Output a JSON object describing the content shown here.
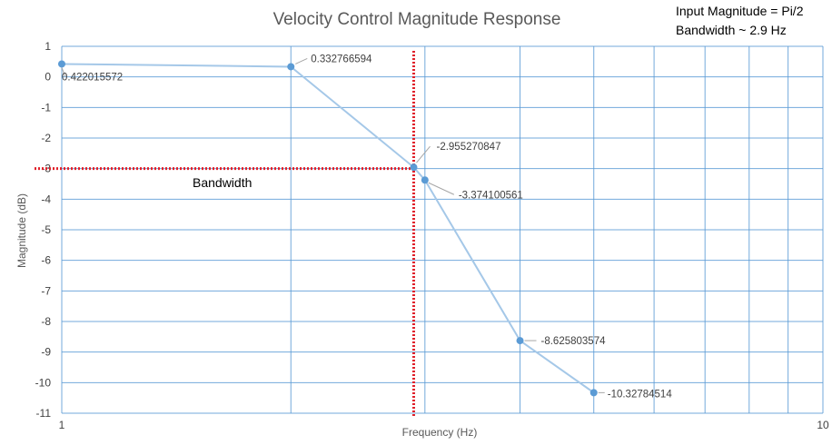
{
  "chart_data": {
    "type": "scatter",
    "title": "Velocity Control Magnitude Response",
    "notes": [
      "Input Magnitude = Pi/2",
      "Bandwidth  ~ 2.9 Hz"
    ],
    "xlabel": "Frequency (Hz)",
    "ylabel": "Magnitude (dB)",
    "x_scale": "log",
    "xlim": [
      1,
      10
    ],
    "ylim": [
      -11,
      1
    ],
    "x_tick_labels": [
      "1",
      "10"
    ],
    "y_ticks": [
      1,
      0,
      -1,
      -2,
      -3,
      -4,
      -5,
      -6,
      -7,
      -8,
      -9,
      -10,
      -11
    ],
    "grid": true,
    "series": [
      {
        "color": "#a5c8e8",
        "marker_color": "#5b9bd5",
        "points": [
          {
            "x": 1.0,
            "y": 0.422015572,
            "label": "0.422015572"
          },
          {
            "x": 2.0,
            "y": 0.332766594,
            "label": "0.332766594"
          },
          {
            "x": 2.9,
            "y": -2.955270847,
            "label": "-2.955270847"
          },
          {
            "x": 3.0,
            "y": -3.374100561,
            "label": "-3.374100561"
          },
          {
            "x": 4.0,
            "y": -8.625803574,
            "label": "-8.625803574"
          },
          {
            "x": 5.0,
            "y": -10.32784514,
            "label": "-10.32784514"
          }
        ]
      }
    ],
    "bandwidth_marker": {
      "x": 2.9,
      "y": -3,
      "label": "Bandwidth",
      "color": "#e0202a"
    }
  }
}
